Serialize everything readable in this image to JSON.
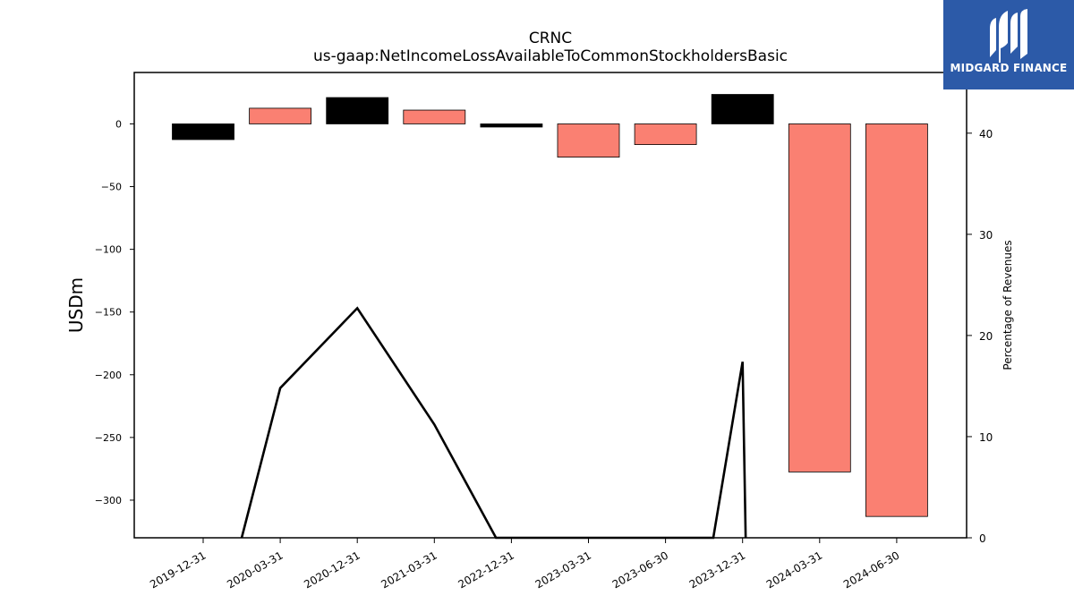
{
  "chart_data": {
    "type": "bar",
    "title": "CRNC",
    "subtitle": "us-gaap:NetIncomeLossAvailableToCommonStockholdersBasic",
    "ylabel": "USDm",
    "y2label": "Percentage of Revenues",
    "ylim": [
      -330,
      41
    ],
    "y_ticks": [
      0,
      -50,
      -100,
      -150,
      -200,
      -250,
      -300
    ],
    "y2lim": [
      0,
      46
    ],
    "y2_ticks": [
      0,
      10,
      20,
      30,
      40
    ],
    "categories": [
      "2019-12-31",
      "2020-03-31",
      "2020-12-31",
      "2021-03-31",
      "2022-12-31",
      "2023-03-31",
      "2023-06-30",
      "2023-12-31",
      "2024-03-31",
      "2024-06-30"
    ],
    "series": [
      {
        "values": [
          -12.5,
          12.5,
          21,
          11,
          -2.5,
          -26.5,
          -16.5,
          23.5,
          -277.5,
          -313
        ],
        "colors": [
          "#000000",
          "#fa8072",
          "#000000",
          "#fa8072",
          "#000000",
          "#fa8072",
          "#fa8072",
          "#000000",
          "#fa8072",
          "#fa8072"
        ]
      },
      {
        "type": "line",
        "axis": "secondary",
        "points": [
          {
            "x": 0.5,
            "y": 0
          },
          {
            "x": 1,
            "y": 14.8
          },
          {
            "x": 2,
            "y": 22.7
          },
          {
            "x": 3,
            "y": 11.2
          },
          {
            "x": 3.8,
            "y": 0
          },
          {
            "x": 6.62,
            "y": 0
          },
          {
            "x": 7,
            "y": 17.4
          },
          {
            "x": 7.04,
            "y": 0
          }
        ],
        "color": "#000000"
      }
    ]
  },
  "logo": {
    "text": "MIDGARD FINANCE",
    "background": "#2c5aa8",
    "icon": "midgard-logo-icon"
  }
}
